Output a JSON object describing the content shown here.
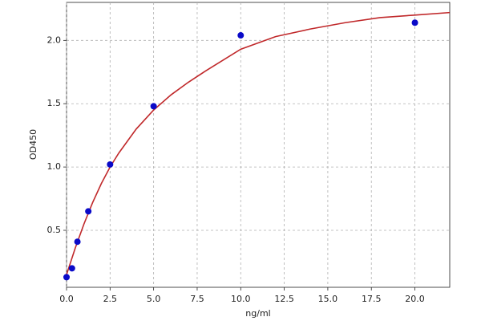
{
  "chart_data": {
    "type": "scatter",
    "x_label": "ng/ml",
    "y_label": "OD450",
    "xlim": [
      0,
      22
    ],
    "ylim": [
      0.05,
      2.3
    ],
    "xticks": [
      {
        "value": 0,
        "label": "0.0"
      },
      2.5,
      {
        "value": 5,
        "label": "5.0"
      },
      7.5,
      {
        "value": 10,
        "label": "10.0"
      },
      12.5,
      {
        "value": 15,
        "label": "15.0"
      },
      17.5,
      {
        "value": 20,
        "label": "20.0"
      }
    ],
    "yticks": [
      0.5,
      {
        "value": 1,
        "label": "1.0"
      },
      1.5,
      {
        "value": 2,
        "label": "2.0"
      }
    ],
    "grid": true,
    "series": [
      {
        "mode": "line",
        "color": "#c0282a",
        "x": [
          0,
          0.5,
          1,
          1.5,
          2,
          2.5,
          3,
          4,
          5,
          6,
          7,
          8,
          10,
          12,
          14,
          16,
          18,
          20,
          22
        ],
        "values": [
          0.15,
          0.36,
          0.55,
          0.72,
          0.87,
          1.0,
          1.11,
          1.3,
          1.45,
          1.57,
          1.67,
          1.76,
          1.93,
          2.03,
          2.09,
          2.14,
          2.18,
          2.2,
          2.22
        ]
      },
      {
        "mode": "markers",
        "color": "#0a0ac8",
        "x": [
          0,
          0.3125,
          0.625,
          1.25,
          2.5,
          5,
          10,
          20
        ],
        "values": [
          0.13,
          0.2,
          0.41,
          0.65,
          1.02,
          1.48,
          2.04,
          2.14
        ]
      }
    ]
  }
}
